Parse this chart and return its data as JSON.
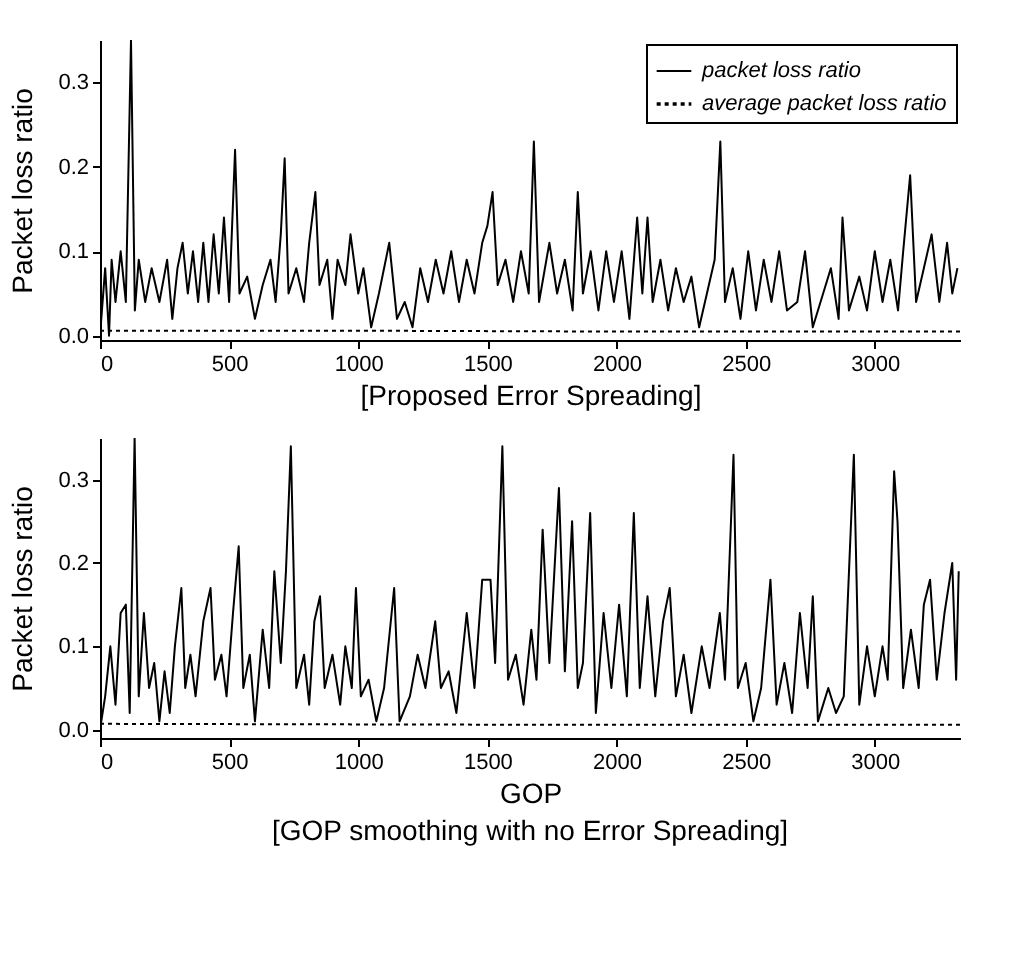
{
  "chart_data": [
    {
      "type": "line",
      "ylabel": "Packet loss ratio",
      "xlabel": "[Proposed Error Spreading]",
      "xlim": [
        0,
        3330
      ],
      "ylim": [
        -0.005,
        0.35
      ],
      "xticks": [
        0,
        500,
        1000,
        1500,
        2000,
        2500,
        3000
      ],
      "yticks": [
        {
          "value": 0,
          "label": "0.0"
        },
        0.1,
        0.2,
        0.3
      ],
      "legend": "top right",
      "series": [
        {
          "name": "packet loss ratio",
          "color": "#000000",
          "line_style": "solid",
          "x": [
            0,
            20,
            35,
            45,
            60,
            80,
            100,
            120,
            135,
            150,
            175,
            200,
            230,
            260,
            280,
            300,
            320,
            340,
            360,
            380,
            400,
            420,
            440,
            460,
            480,
            500,
            523,
            540,
            570,
            600,
            630,
            660,
            680,
            700,
            715,
            730,
            760,
            790,
            810,
            834,
            850,
            880,
            900,
            920,
            950,
            970,
            1000,
            1020,
            1050,
            1080,
            1120,
            1150,
            1180,
            1210,
            1240,
            1270,
            1300,
            1330,
            1360,
            1390,
            1420,
            1450,
            1480,
            1500,
            1520,
            1540,
            1570,
            1600,
            1630,
            1660,
            1680,
            1700,
            1740,
            1770,
            1800,
            1830,
            1850,
            1870,
            1900,
            1930,
            1960,
            1990,
            2020,
            2050,
            2080,
            2100,
            2120,
            2140,
            2170,
            2200,
            2230,
            2260,
            2290,
            2320,
            2350,
            2380,
            2402,
            2420,
            2450,
            2480,
            2510,
            2540,
            2570,
            2600,
            2630,
            2660,
            2700,
            2730,
            2760,
            2800,
            2830,
            2860,
            2875,
            2900,
            2940,
            2970,
            3000,
            3030,
            3060,
            3090,
            3110,
            3137,
            3160,
            3190,
            3220,
            3250,
            3280,
            3300,
            3320
          ],
          "values": [
            0,
            0.08,
            0,
            0.09,
            0.04,
            0.1,
            0.04,
            0.35,
            0.03,
            0.09,
            0.04,
            0.08,
            0.04,
            0.09,
            0.02,
            0.08,
            0.11,
            0.05,
            0.1,
            0.04,
            0.11,
            0.04,
            0.12,
            0.05,
            0.14,
            0.04,
            0.22,
            0.05,
            0.07,
            0.02,
            0.06,
            0.09,
            0.04,
            0.12,
            0.21,
            0.05,
            0.08,
            0.04,
            0.11,
            0.17,
            0.06,
            0.09,
            0.02,
            0.09,
            0.06,
            0.12,
            0.05,
            0.08,
            0.01,
            0.05,
            0.11,
            0.02,
            0.04,
            0.01,
            0.08,
            0.04,
            0.09,
            0.05,
            0.1,
            0.04,
            0.09,
            0.05,
            0.11,
            0.13,
            0.17,
            0.06,
            0.09,
            0.04,
            0.1,
            0.05,
            0.23,
            0.04,
            0.11,
            0.05,
            0.09,
            0.03,
            0.17,
            0.05,
            0.1,
            0.03,
            0.1,
            0.04,
            0.1,
            0.02,
            0.14,
            0.05,
            0.14,
            0.04,
            0.09,
            0.03,
            0.08,
            0.04,
            0.07,
            0.01,
            0.05,
            0.09,
            0.23,
            0.04,
            0.08,
            0.02,
            0.1,
            0.03,
            0.09,
            0.04,
            0.1,
            0.03,
            0.04,
            0.1,
            0.01,
            0.05,
            0.08,
            0.02,
            0.14,
            0.03,
            0.07,
            0.03,
            0.1,
            0.04,
            0.09,
            0.03,
            0.1,
            0.19,
            0.04,
            0.08,
            0.12,
            0.04,
            0.11,
            0.05,
            0.08
          ]
        },
        {
          "name": "average packet loss ratio",
          "color": "#000000",
          "line_style": "dotted",
          "x": [
            0,
            1000,
            2000,
            3330
          ],
          "values": [
            0.006,
            0.006,
            0.005,
            0.005
          ]
        }
      ]
    },
    {
      "type": "line",
      "ylabel": "Packet loss ratio",
      "xlabel": "GOP",
      "annotations": [
        "[GOP smoothing with no Error Spreading]"
      ],
      "xlim": [
        0,
        3330
      ],
      "ylim": [
        -0.01,
        0.35
      ],
      "xticks": [
        0,
        500,
        1000,
        1500,
        2000,
        2500,
        3000
      ],
      "yticks": [
        {
          "value": 0,
          "label": "0.0"
        },
        0.1,
        0.2,
        0.3
      ],
      "series": [
        {
          "color": "#000000",
          "line_style": "solid",
          "x": [
            0,
            20,
            40,
            60,
            80,
            100,
            115,
            134,
            150,
            170,
            190,
            210,
            230,
            250,
            270,
            290,
            315,
            330,
            350,
            370,
            400,
            428,
            445,
            470,
            490,
            515,
            537,
            555,
            580,
            600,
            630,
            655,
            675,
            700,
            720,
            739,
            760,
            790,
            810,
            830,
            852,
            870,
            900,
            930,
            950,
            975,
            991,
            1010,
            1040,
            1070,
            1100,
            1139,
            1160,
            1200,
            1230,
            1260,
            1298,
            1320,
            1350,
            1380,
            1420,
            1450,
            1480,
            1512,
            1530,
            1558,
            1580,
            1610,
            1640,
            1670,
            1690,
            1714,
            1740,
            1777,
            1800,
            1828,
            1850,
            1870,
            1898,
            1920,
            1950,
            1980,
            2010,
            2040,
            2067,
            2090,
            2120,
            2150,
            2180,
            2206,
            2230,
            2260,
            2290,
            2330,
            2360,
            2400,
            2420,
            2453,
            2470,
            2500,
            2530,
            2560,
            2596,
            2620,
            2650,
            2680,
            2710,
            2740,
            2760,
            2780,
            2820,
            2850,
            2880,
            2919,
            2940,
            2970,
            3000,
            3030,
            3050,
            3075,
            3088,
            3110,
            3140,
            3170,
            3190,
            3214,
            3240,
            3270,
            3300,
            3315,
            3325
          ],
          "values": [
            0,
            0.04,
            0.1,
            0.03,
            0.14,
            0.15,
            0.02,
            0.35,
            0.04,
            0.14,
            0.05,
            0.08,
            0.01,
            0.07,
            0.02,
            0.1,
            0.17,
            0.05,
            0.09,
            0.04,
            0.13,
            0.17,
            0.06,
            0.09,
            0.04,
            0.14,
            0.22,
            0.05,
            0.09,
            0.01,
            0.12,
            0.05,
            0.19,
            0.08,
            0.19,
            0.34,
            0.05,
            0.09,
            0.03,
            0.13,
            0.16,
            0.05,
            0.09,
            0.03,
            0.1,
            0.05,
            0.17,
            0.04,
            0.06,
            0.01,
            0.05,
            0.17,
            0.01,
            0.04,
            0.09,
            0.05,
            0.13,
            0.05,
            0.07,
            0.02,
            0.14,
            0.05,
            0.18,
            0.18,
            0.08,
            0.34,
            0.06,
            0.09,
            0.03,
            0.12,
            0.06,
            0.24,
            0.08,
            0.29,
            0.07,
            0.25,
            0.05,
            0.08,
            0.26,
            0.02,
            0.14,
            0.05,
            0.15,
            0.04,
            0.26,
            0.05,
            0.16,
            0.04,
            0.13,
            0.17,
            0.04,
            0.09,
            0.02,
            0.1,
            0.05,
            0.14,
            0.06,
            0.33,
            0.05,
            0.08,
            0.01,
            0.05,
            0.18,
            0.03,
            0.08,
            0.02,
            0.14,
            0.05,
            0.16,
            0.01,
            0.05,
            0.02,
            0.04,
            0.33,
            0.03,
            0.1,
            0.04,
            0.1,
            0.06,
            0.31,
            0.25,
            0.05,
            0.12,
            0.05,
            0.15,
            0.18,
            0.06,
            0.14,
            0.2,
            0.06,
            0.19
          ]
        },
        {
          "color": "#000000",
          "line_style": "dotted",
          "x": [
            0,
            1500,
            3330
          ],
          "values": [
            0.007,
            0.006,
            0.006
          ]
        }
      ]
    }
  ]
}
